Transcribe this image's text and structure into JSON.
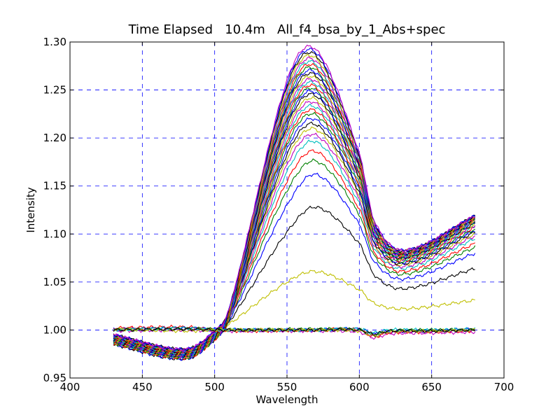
{
  "chart_data": {
    "type": "line",
    "title": "Time Elapsed   10.4m   All_f4_bsa_by_1_Abs+spec",
    "xlabel": "Wavelength",
    "ylabel": "Intensity",
    "xlim": [
      400,
      700
    ],
    "ylim": [
      0.95,
      1.3
    ],
    "xticks": [
      "400",
      "450",
      "500",
      "550",
      "600",
      "650",
      "700"
    ],
    "yticks": [
      "0.95",
      "1.00",
      "1.05",
      "1.10",
      "1.15",
      "1.20",
      "1.25",
      "1.30"
    ],
    "grid": true,
    "grid_style": "dashed-blue",
    "x_range_data": [
      430,
      680
    ],
    "colors": [
      "#0000ff",
      "#008000",
      "#ff0000",
      "#00bfbf",
      "#bf00bf",
      "#bfbf00",
      "#000000"
    ],
    "series": [
      {
        "color": "#bfbf00",
        "x": [
          430,
          480,
          500,
          510,
          550,
          570,
          600,
          610,
          630,
          680
        ],
        "values": [
          0.988,
          0.978,
          0.995,
          1.006,
          1.05,
          1.061,
          1.042,
          1.028,
          1.022,
          1.031
        ]
      },
      {
        "color": "#000000",
        "x": [
          430,
          480,
          500,
          510,
          550,
          570,
          600,
          610,
          630,
          680
        ],
        "values": [
          0.985,
          0.97,
          0.99,
          1.008,
          1.102,
          1.128,
          1.09,
          1.058,
          1.043,
          1.064
        ]
      },
      {
        "color": "#0000ff",
        "x": [
          430,
          480,
          500,
          510,
          550,
          570,
          600,
          610,
          630,
          680
        ],
        "values": [
          0.985,
          0.97,
          0.99,
          1.01,
          1.13,
          1.162,
          1.11,
          1.072,
          1.053,
          1.08
        ]
      },
      {
        "color": "#008000",
        "x": [
          430,
          480,
          500,
          510,
          550,
          570,
          600,
          610,
          630,
          680
        ],
        "values": [
          0.986,
          0.971,
          0.99,
          1.011,
          1.145,
          1.176,
          1.12,
          1.078,
          1.058,
          1.086
        ]
      },
      {
        "color": "#ff0000",
        "x": [
          430,
          480,
          500,
          510,
          550,
          570,
          600,
          610,
          630,
          680
        ],
        "values": [
          0.986,
          0.971,
          0.99,
          1.012,
          1.155,
          1.186,
          1.126,
          1.082,
          1.061,
          1.09
        ]
      },
      {
        "color": "#00bfbf",
        "x": [
          430,
          480,
          500,
          510,
          550,
          570,
          600,
          610,
          630,
          680
        ],
        "values": [
          0.987,
          0.972,
          0.991,
          1.013,
          1.165,
          1.196,
          1.132,
          1.086,
          1.064,
          1.095
        ]
      },
      {
        "color": "#bf00bf",
        "x": [
          430,
          480,
          500,
          510,
          550,
          570,
          600,
          610,
          630,
          680
        ],
        "values": [
          0.987,
          0.972,
          0.991,
          1.013,
          1.172,
          1.203,
          1.136,
          1.088,
          1.066,
          1.098
        ]
      },
      {
        "color": "#bfbf00",
        "x": [
          430,
          480,
          500,
          510,
          550,
          570,
          600,
          610,
          630,
          680
        ],
        "values": [
          0.987,
          0.972,
          0.991,
          1.014,
          1.178,
          1.209,
          1.14,
          1.09,
          1.068,
          1.1
        ]
      },
      {
        "color": "#000000",
        "x": [
          430,
          480,
          500,
          510,
          550,
          570,
          600,
          610,
          630,
          680
        ],
        "values": [
          0.988,
          0.973,
          0.992,
          1.014,
          1.183,
          1.214,
          1.143,
          1.092,
          1.069,
          1.102
        ]
      },
      {
        "color": "#0000ff",
        "x": [
          430,
          480,
          500,
          510,
          550,
          570,
          600,
          610,
          630,
          680
        ],
        "values": [
          0.988,
          0.973,
          0.992,
          1.015,
          1.188,
          1.219,
          1.146,
          1.093,
          1.07,
          1.104
        ]
      },
      {
        "color": "#008000",
        "x": [
          430,
          480,
          500,
          510,
          550,
          570,
          600,
          610,
          630,
          680
        ],
        "values": [
          0.988,
          0.973,
          0.992,
          1.015,
          1.193,
          1.224,
          1.149,
          1.095,
          1.071,
          1.105
        ]
      },
      {
        "color": "#ff0000",
        "x": [
          430,
          480,
          500,
          510,
          550,
          570,
          600,
          610,
          630,
          680
        ],
        "values": [
          0.989,
          0.974,
          0.993,
          1.016,
          1.197,
          1.228,
          1.151,
          1.096,
          1.072,
          1.107
        ]
      },
      {
        "color": "#00bfbf",
        "x": [
          430,
          480,
          500,
          510,
          550,
          570,
          600,
          610,
          630,
          680
        ],
        "values": [
          0.989,
          0.974,
          0.993,
          1.016,
          1.201,
          1.232,
          1.153,
          1.097,
          1.073,
          1.108
        ]
      },
      {
        "color": "#bf00bf",
        "x": [
          430,
          480,
          500,
          510,
          550,
          570,
          600,
          610,
          630,
          680
        ],
        "values": [
          0.989,
          0.974,
          0.993,
          1.016,
          1.205,
          1.236,
          1.155,
          1.098,
          1.074,
          1.109
        ]
      },
      {
        "color": "#bfbf00",
        "x": [
          430,
          480,
          500,
          510,
          550,
          570,
          600,
          610,
          630,
          680
        ],
        "values": [
          0.99,
          0.975,
          0.993,
          1.017,
          1.208,
          1.24,
          1.157,
          1.099,
          1.074,
          1.11
        ]
      },
      {
        "color": "#000000",
        "x": [
          430,
          480,
          500,
          510,
          550,
          570,
          600,
          610,
          630,
          680
        ],
        "values": [
          0.99,
          0.975,
          0.994,
          1.017,
          1.212,
          1.244,
          1.159,
          1.1,
          1.075,
          1.111
        ]
      },
      {
        "color": "#0000ff",
        "x": [
          430,
          480,
          500,
          510,
          550,
          570,
          600,
          610,
          630,
          680
        ],
        "values": [
          0.99,
          0.975,
          0.994,
          1.017,
          1.215,
          1.247,
          1.161,
          1.101,
          1.076,
          1.112
        ]
      },
      {
        "color": "#008000",
        "x": [
          430,
          480,
          500,
          510,
          550,
          570,
          600,
          610,
          630,
          680
        ],
        "values": [
          0.991,
          0.976,
          0.994,
          1.018,
          1.218,
          1.25,
          1.162,
          1.102,
          1.076,
          1.113
        ]
      },
      {
        "color": "#ff0000",
        "x": [
          430,
          480,
          500,
          510,
          550,
          570,
          600,
          610,
          630,
          680
        ],
        "values": [
          0.991,
          0.976,
          0.995,
          1.018,
          1.221,
          1.253,
          1.164,
          1.103,
          1.077,
          1.114
        ]
      },
      {
        "color": "#00bfbf",
        "x": [
          430,
          480,
          500,
          510,
          550,
          570,
          600,
          610,
          630,
          680
        ],
        "values": [
          0.991,
          0.976,
          0.995,
          1.018,
          1.224,
          1.256,
          1.166,
          1.104,
          1.077,
          1.114
        ]
      },
      {
        "color": "#bf00bf",
        "x": [
          430,
          480,
          500,
          510,
          550,
          570,
          600,
          610,
          630,
          680
        ],
        "values": [
          0.992,
          0.977,
          0.995,
          1.019,
          1.227,
          1.259,
          1.168,
          1.105,
          1.078,
          1.115
        ]
      },
      {
        "color": "#bfbf00",
        "x": [
          430,
          480,
          500,
          510,
          550,
          570,
          600,
          610,
          630,
          680
        ],
        "values": [
          0.992,
          0.977,
          0.996,
          1.019,
          1.23,
          1.262,
          1.169,
          1.106,
          1.078,
          1.115
        ]
      },
      {
        "color": "#000000",
        "x": [
          430,
          480,
          500,
          510,
          550,
          570,
          600,
          610,
          630,
          680
        ],
        "values": [
          0.992,
          0.977,
          0.996,
          1.019,
          1.233,
          1.265,
          1.171,
          1.107,
          1.079,
          1.116
        ]
      },
      {
        "color": "#0000ff",
        "x": [
          430,
          480,
          500,
          510,
          550,
          570,
          600,
          610,
          630,
          680
        ],
        "values": [
          0.993,
          0.978,
          0.996,
          1.02,
          1.236,
          1.268,
          1.172,
          1.108,
          1.079,
          1.116
        ]
      },
      {
        "color": "#008000",
        "x": [
          430,
          480,
          500,
          510,
          550,
          570,
          600,
          610,
          630,
          680
        ],
        "values": [
          0.993,
          0.978,
          0.997,
          1.02,
          1.239,
          1.271,
          1.174,
          1.109,
          1.08,
          1.117
        ]
      },
      {
        "color": "#ff0000",
        "x": [
          430,
          480,
          500,
          510,
          550,
          570,
          600,
          610,
          630,
          680
        ],
        "values": [
          0.993,
          0.978,
          0.997,
          1.02,
          1.242,
          1.274,
          1.175,
          1.11,
          1.08,
          1.117
        ]
      },
      {
        "color": "#00bfbf",
        "x": [
          430,
          480,
          500,
          510,
          550,
          570,
          600,
          610,
          630,
          680
        ],
        "values": [
          0.994,
          0.979,
          0.997,
          1.021,
          1.245,
          1.277,
          1.177,
          1.11,
          1.081,
          1.118
        ]
      },
      {
        "color": "#bf00bf",
        "x": [
          430,
          480,
          500,
          510,
          550,
          570,
          600,
          610,
          630,
          680
        ],
        "values": [
          0.994,
          0.979,
          0.998,
          1.021,
          1.248,
          1.28,
          1.178,
          1.111,
          1.081,
          1.118
        ]
      },
      {
        "color": "#bfbf00",
        "x": [
          430,
          480,
          500,
          510,
          550,
          570,
          600,
          610,
          630,
          680
        ],
        "values": [
          0.994,
          0.979,
          0.998,
          1.021,
          1.251,
          1.283,
          1.18,
          1.112,
          1.082,
          1.118
        ]
      },
      {
        "color": "#000000",
        "x": [
          430,
          480,
          500,
          510,
          550,
          570,
          600,
          610,
          630,
          680
        ],
        "values": [
          0.995,
          0.98,
          0.998,
          1.022,
          1.254,
          1.286,
          1.181,
          1.113,
          1.082,
          1.119
        ]
      },
      {
        "color": "#0000ff",
        "x": [
          430,
          480,
          500,
          510,
          550,
          570,
          600,
          610,
          630,
          680
        ],
        "values": [
          0.995,
          0.98,
          0.999,
          1.022,
          1.257,
          1.289,
          1.183,
          1.114,
          1.083,
          1.119
        ]
      },
      {
        "color": "#bf00bf",
        "x": [
          430,
          480,
          500,
          510,
          550,
          570,
          600,
          610,
          630,
          680
        ],
        "values": [
          0.995,
          0.98,
          0.999,
          1.022,
          1.26,
          1.292,
          1.184,
          1.115,
          1.083,
          1.119
        ]
      },
      {
        "color": "#0000ff",
        "x": [
          430,
          480,
          500,
          520,
          570,
          600,
          610,
          620,
          650,
          680
        ],
        "values": [
          1.001,
          1.002,
          1.001,
          1.0,
          1.0,
          1.001,
          0.996,
          0.998,
          0.999,
          1.001
        ]
      },
      {
        "color": "#ff0000",
        "x": [
          430,
          480,
          500,
          520,
          570,
          600,
          610,
          620,
          650,
          680
        ],
        "values": [
          1.002,
          1.003,
          1.0,
          0.999,
          1.0,
          1.0,
          0.993,
          0.997,
          0.998,
          0.999
        ]
      },
      {
        "color": "#008000",
        "x": [
          430,
          480,
          500,
          520,
          570,
          600,
          610,
          620,
          650,
          680
        ],
        "values": [
          1.0,
          1.001,
          1.001,
          1.0,
          1.001,
          1.0,
          0.995,
          0.999,
          1.0,
          1.0
        ]
      },
      {
        "color": "#bf00bf",
        "x": [
          430,
          480,
          500,
          520,
          570,
          600,
          610,
          620,
          650,
          680
        ],
        "values": [
          0.999,
          1.0,
          0.999,
          0.999,
          0.999,
          0.998,
          0.992,
          0.996,
          0.997,
          0.998
        ]
      },
      {
        "color": "#00bfbf",
        "x": [
          430,
          480,
          500,
          520,
          570,
          600,
          610,
          620,
          650,
          680
        ],
        "values": [
          1.0,
          1.002,
          1.0,
          1.0,
          1.0,
          1.001,
          0.997,
          1.0,
          1.0,
          1.001
        ]
      },
      {
        "color": "#bfbf00",
        "x": [
          430,
          480,
          500,
          520,
          570,
          600,
          610,
          620,
          650,
          680
        ],
        "values": [
          1.001,
          0.999,
          1.0,
          1.0,
          1.0,
          0.999,
          0.994,
          0.998,
          0.999,
          1.0
        ]
      },
      {
        "color": "#000000",
        "x": [
          430,
          480,
          500,
          520,
          570,
          600,
          610,
          620,
          650,
          680
        ],
        "values": [
          1.0,
          1.001,
          1.0,
          1.0,
          1.0,
          1.0,
          0.996,
          0.999,
          0.999,
          1.0
        ]
      }
    ]
  }
}
